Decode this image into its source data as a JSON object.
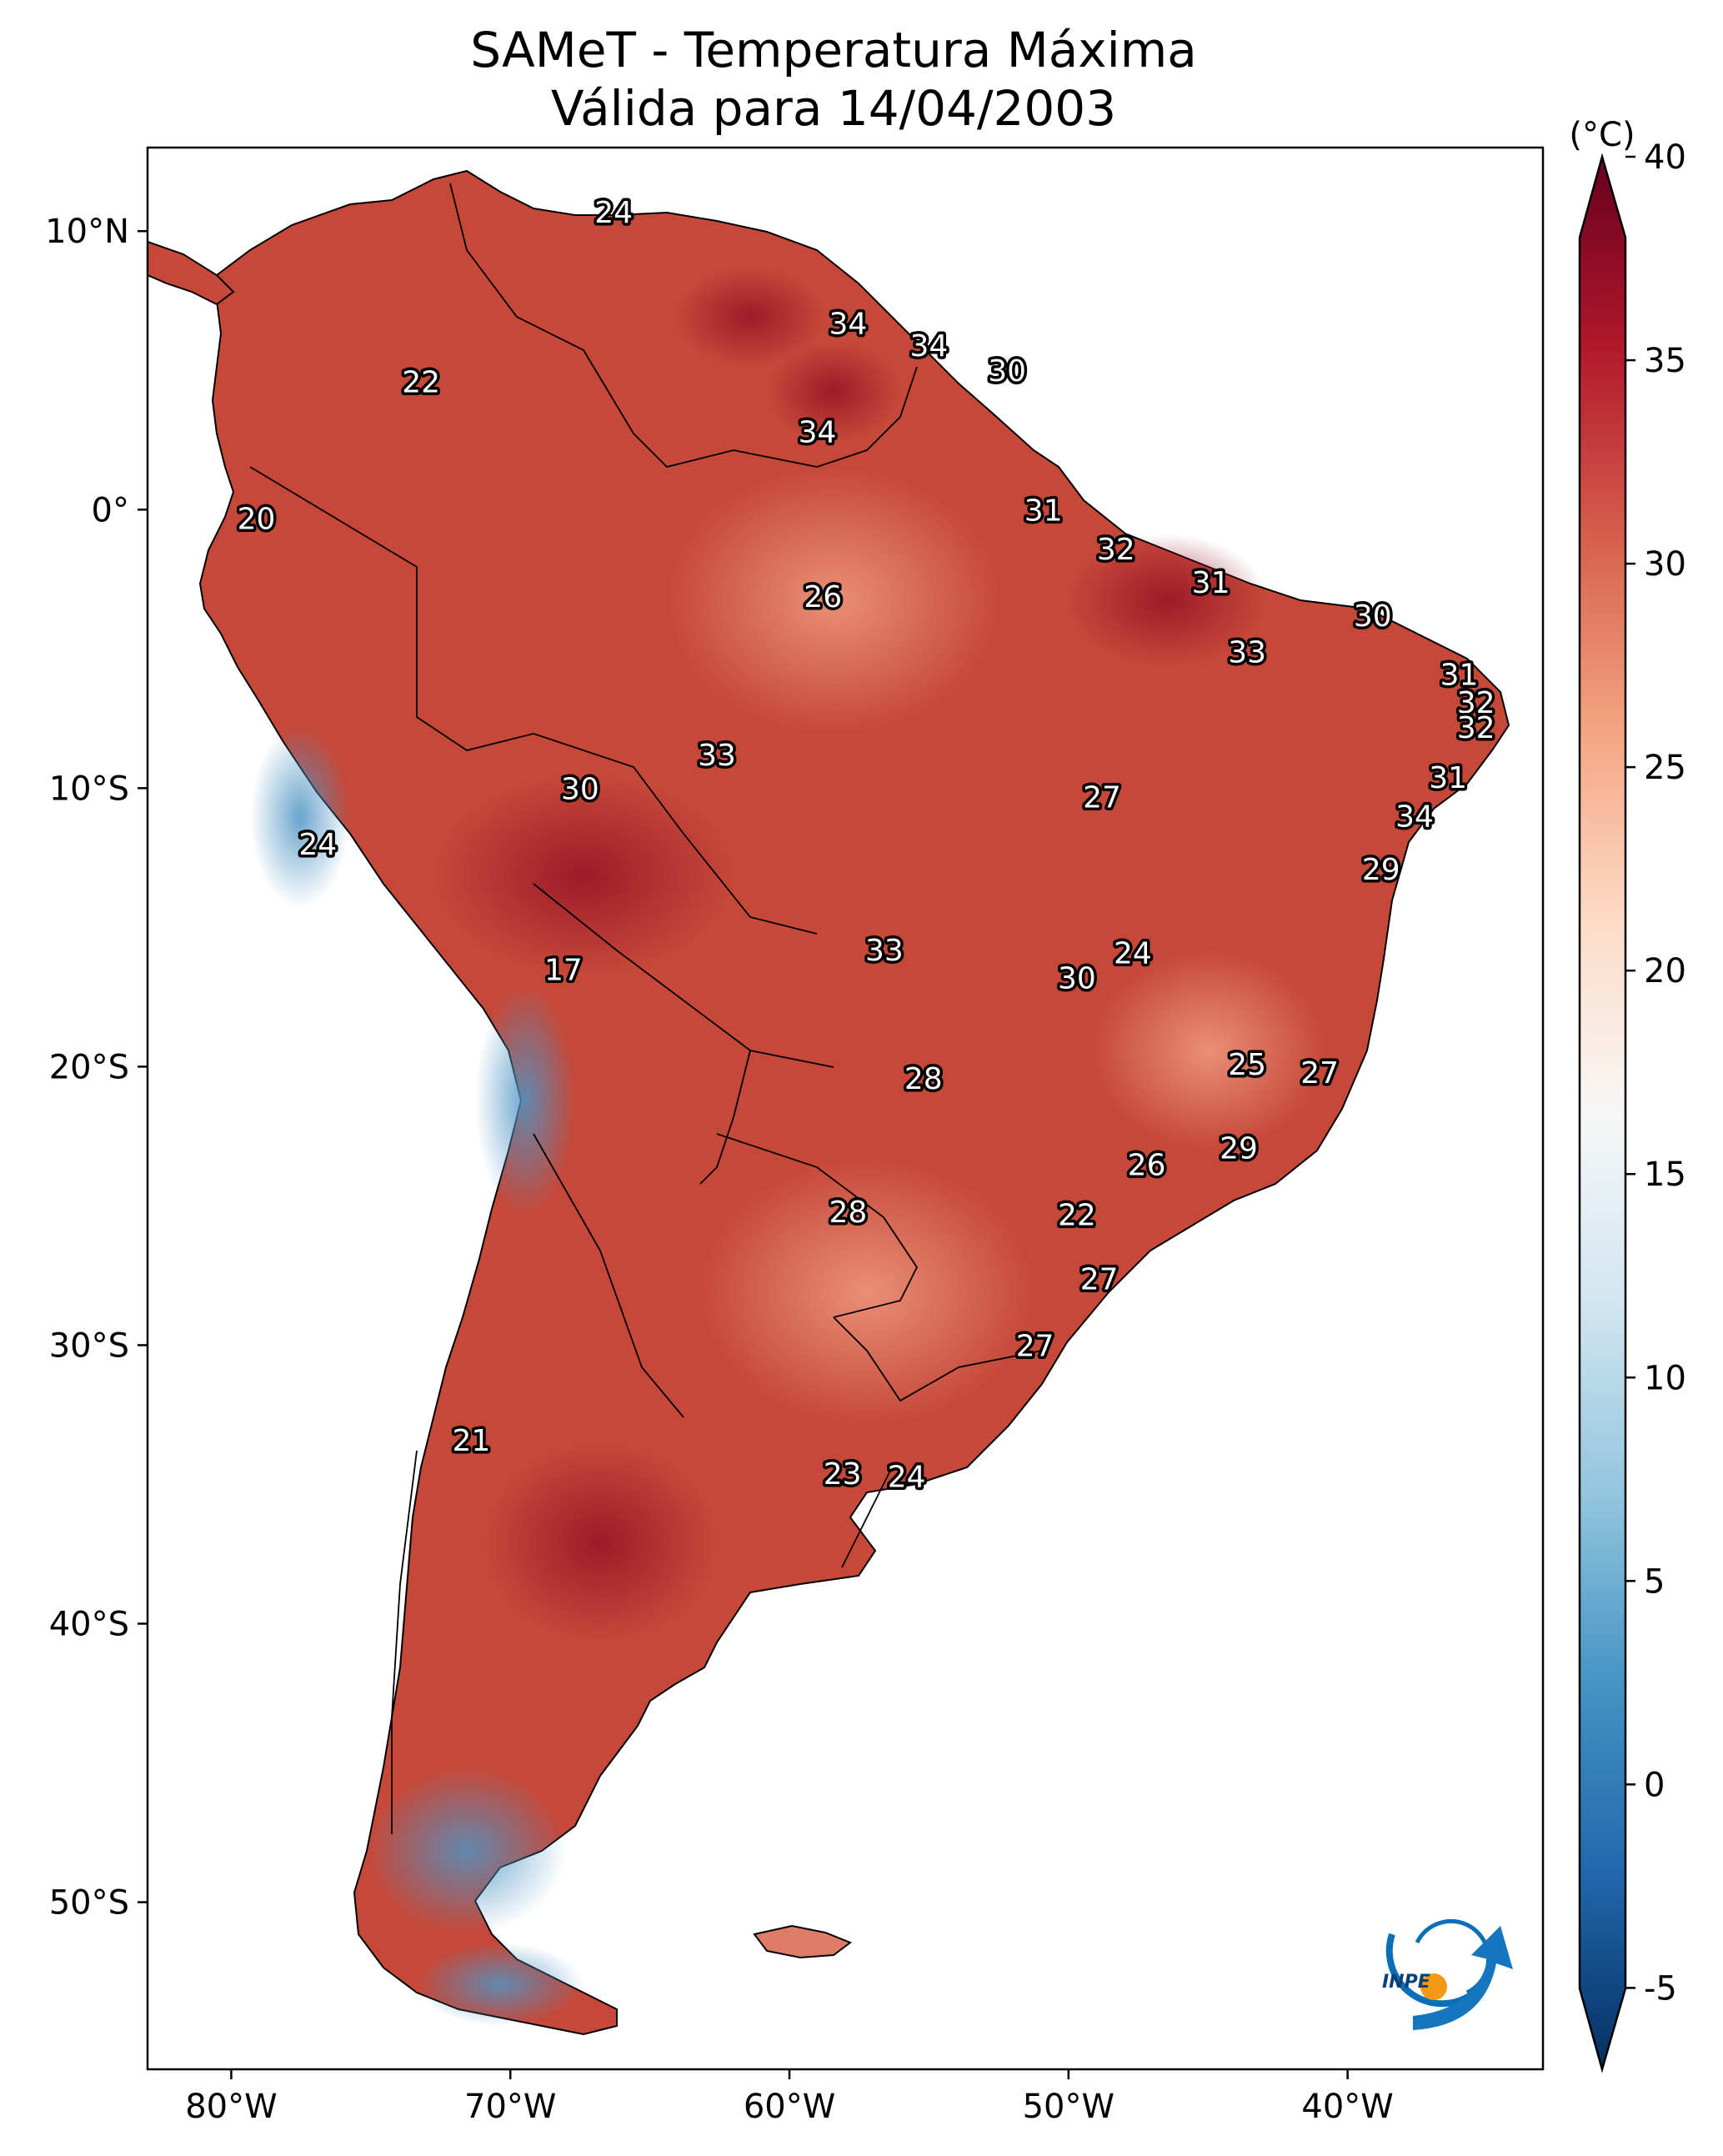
{
  "title_line1": "SAMeT - Temperatura Máxima",
  "title_line2": "Válida para 14/04/2003",
  "colorbar": {
    "unit": "(°C)",
    "min": -7,
    "max": 40,
    "ticks": [
      "-5",
      "0",
      "5",
      "10",
      "15",
      "20",
      "25",
      "30",
      "35",
      "40"
    ],
    "colors": [
      "#053061",
      "#2166ac",
      "#4393c3",
      "#92c5de",
      "#d1e5f0",
      "#f7f7f7",
      "#fddbc7",
      "#f4a582",
      "#d6604d",
      "#b2182b",
      "#67001f"
    ]
  },
  "lat_ticks": [
    "10°N",
    "0°",
    "10°S",
    "20°S",
    "30°S",
    "40°S",
    "50°S"
  ],
  "lon_ticks": [
    "80°W",
    "70°W",
    "60°W",
    "50°W",
    "40°W"
  ],
  "extent": {
    "lon": [
      -83,
      -33
    ],
    "lat": [
      -56,
      13
    ]
  },
  "labels": [
    {
      "lon": -66.3,
      "lat": 10.7,
      "v": "24"
    },
    {
      "lon": -73.2,
      "lat": 4.6,
      "v": "22"
    },
    {
      "lon": -57.9,
      "lat": 6.7,
      "v": "34"
    },
    {
      "lon": -55.0,
      "lat": 5.9,
      "v": "34"
    },
    {
      "lon": -52.2,
      "lat": 5.0,
      "v": "30"
    },
    {
      "lon": -59.0,
      "lat": 2.8,
      "v": "34"
    },
    {
      "lon": -79.1,
      "lat": -0.3,
      "v": "20"
    },
    {
      "lon": -50.9,
      "lat": -0.0,
      "v": "31"
    },
    {
      "lon": -48.3,
      "lat": -1.4,
      "v": "32"
    },
    {
      "lon": -44.9,
      "lat": -2.6,
      "v": "31"
    },
    {
      "lon": -39.1,
      "lat": -3.8,
      "v": "30"
    },
    {
      "lon": -58.8,
      "lat": -3.1,
      "v": "26"
    },
    {
      "lon": -43.6,
      "lat": -5.1,
      "v": "33"
    },
    {
      "lon": -36.0,
      "lat": -5.9,
      "v": "31"
    },
    {
      "lon": -35.4,
      "lat": -6.9,
      "v": "32"
    },
    {
      "lon": -35.4,
      "lat": -7.8,
      "v": "32"
    },
    {
      "lon": -62.6,
      "lat": -8.8,
      "v": "33"
    },
    {
      "lon": -67.5,
      "lat": -10.0,
      "v": "30"
    },
    {
      "lon": -48.8,
      "lat": -10.3,
      "v": "27"
    },
    {
      "lon": -36.4,
      "lat": -9.6,
      "v": "31"
    },
    {
      "lon": -37.6,
      "lat": -11.0,
      "v": "34"
    },
    {
      "lon": -76.9,
      "lat": -12.0,
      "v": "24"
    },
    {
      "lon": -38.8,
      "lat": -12.9,
      "v": "29"
    },
    {
      "lon": -56.6,
      "lat": -15.8,
      "v": "33"
    },
    {
      "lon": -47.7,
      "lat": -15.9,
      "v": "24"
    },
    {
      "lon": -49.7,
      "lat": -16.8,
      "v": "30"
    },
    {
      "lon": -68.1,
      "lat": -16.5,
      "v": "17"
    },
    {
      "lon": -55.2,
      "lat": -20.4,
      "v": "28"
    },
    {
      "lon": -43.6,
      "lat": -19.9,
      "v": "25"
    },
    {
      "lon": -41.0,
      "lat": -20.2,
      "v": "27"
    },
    {
      "lon": -47.2,
      "lat": -23.5,
      "v": "26"
    },
    {
      "lon": -43.9,
      "lat": -22.9,
      "v": "29"
    },
    {
      "lon": -57.9,
      "lat": -25.2,
      "v": "28"
    },
    {
      "lon": -49.7,
      "lat": -25.3,
      "v": "22"
    },
    {
      "lon": -48.9,
      "lat": -27.6,
      "v": "27"
    },
    {
      "lon": -51.2,
      "lat": -30.0,
      "v": "27"
    },
    {
      "lon": -71.4,
      "lat": -33.4,
      "v": "21"
    },
    {
      "lon": -58.1,
      "lat": -34.6,
      "v": "23"
    },
    {
      "lon": -55.8,
      "lat": -34.7,
      "v": "24"
    }
  ]
}
